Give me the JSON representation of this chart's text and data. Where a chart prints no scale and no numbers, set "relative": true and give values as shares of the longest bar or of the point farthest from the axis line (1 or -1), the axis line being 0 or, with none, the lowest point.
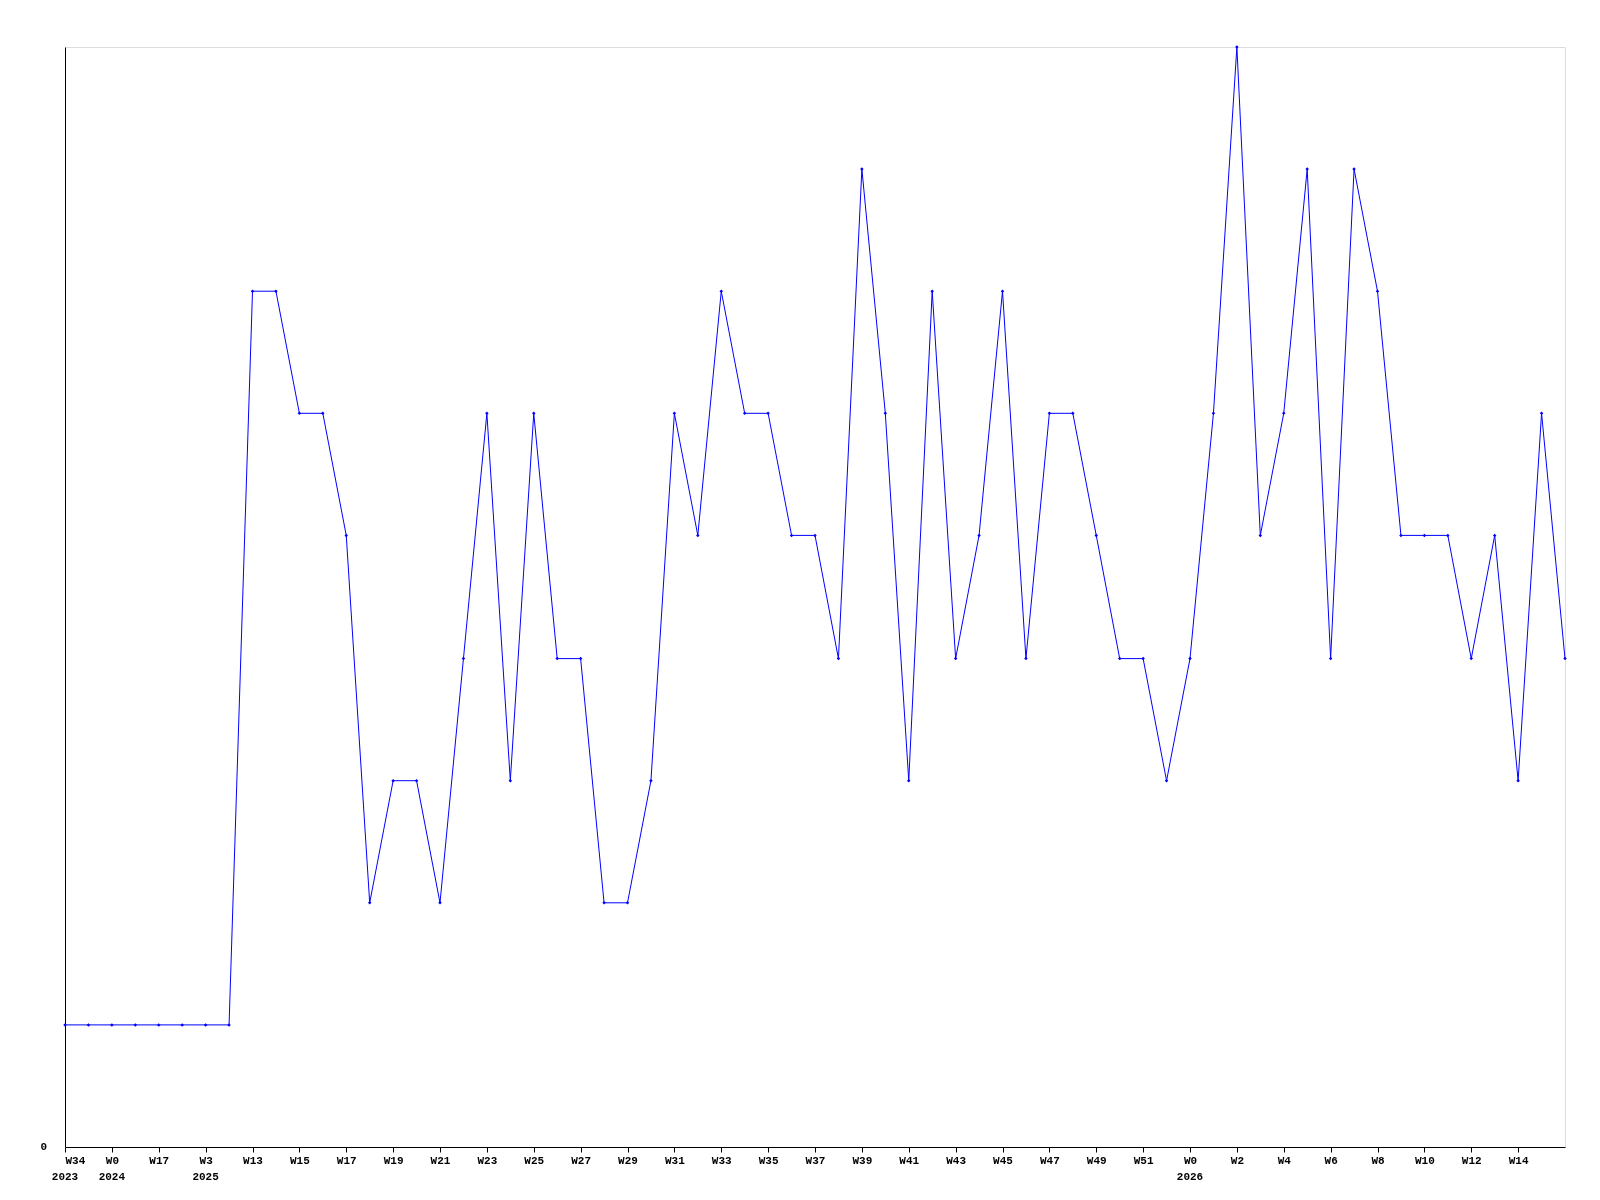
{
  "chart_data": {
    "type": "line",
    "relative": true,
    "color": "#0000ff",
    "marker": "diamond",
    "grid": false,
    "categories": [
      "W34\n2023",
      null,
      "W0\n2024",
      null,
      "W17",
      null,
      "W3\n2025",
      null,
      "W13",
      null,
      "W15",
      null,
      "W17",
      null,
      "W19",
      null,
      "W21",
      null,
      "W23",
      null,
      "W25",
      null,
      "W27",
      null,
      "W29",
      null,
      "W31",
      null,
      "W33",
      null,
      "W35",
      null,
      "W37",
      null,
      "W39",
      null,
      "W41",
      null,
      "W43",
      null,
      "W45",
      null,
      "W47",
      null,
      "W49",
      null,
      "W51",
      null,
      "W0\n2026",
      null,
      "W2",
      null,
      "W4",
      null,
      "W6",
      null,
      "W8",
      null,
      "W10",
      null,
      "W12",
      null,
      "W14",
      null,
      null
    ],
    "values": [
      0.111,
      0.111,
      0.111,
      0.111,
      0.111,
      0.111,
      0.111,
      0.111,
      0.778,
      0.778,
      0.667,
      0.667,
      0.556,
      0.222,
      0.333,
      0.333,
      0.222,
      0.444,
      0.667,
      0.333,
      0.667,
      0.444,
      0.444,
      0.222,
      0.222,
      0.333,
      0.667,
      0.556,
      0.778,
      0.667,
      0.667,
      0.556,
      0.556,
      0.444,
      0.889,
      0.667,
      0.333,
      0.778,
      0.444,
      0.556,
      0.778,
      0.444,
      0.667,
      0.667,
      0.556,
      0.444,
      0.444,
      0.333,
      0.444,
      0.667,
      1,
      0.556,
      0.667,
      0.889,
      0.444,
      0.889,
      0.778,
      0.556,
      0.556,
      0.556,
      0.444,
      0.556,
      0.333,
      0.667,
      0.444
    ],
    "annotations": [
      "0"
    ]
  }
}
